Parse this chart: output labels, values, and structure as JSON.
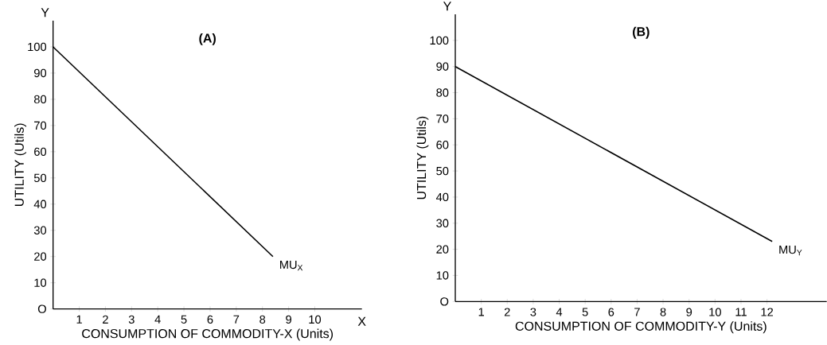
{
  "chart_data": [
    {
      "type": "line",
      "title": "(A)",
      "xlabel": "CONSUMPTION OF COMMODITY-X (Units)",
      "ylabel": "UTILITY (Utils)",
      "annotations": [
        "X",
        "Y"
      ],
      "x": [
        0,
        8.4
      ],
      "series": [
        {
          "name": "MU$_{X}$",
          "color": "#000000",
          "values": [
            100,
            20
          ]
        }
      ],
      "xlim": [
        0,
        11.8
      ],
      "ylim": [
        0,
        110
      ],
      "xticks": [
        1,
        2,
        3,
        4,
        5,
        6,
        7,
        8,
        9,
        10
      ],
      "yticks": [
        {
          "value": 0,
          "label": "O"
        },
        10,
        20,
        30,
        40,
        50,
        60,
        70,
        80,
        90,
        100
      ]
    },
    {
      "type": "line",
      "title": "(B)",
      "xlabel": "CONSUMPTION OF COMMODITY-Y (Units)",
      "ylabel": "UTILITY (Utils)",
      "annotations": [
        "Y"
      ],
      "x": [
        0,
        12.2
      ],
      "series": [
        {
          "name": "MU$_{Y}$",
          "color": "#000000",
          "values": [
            90,
            23
          ]
        }
      ],
      "xlim": [
        0,
        14.3
      ],
      "ylim": [
        0,
        110
      ],
      "xticks": [
        1,
        2,
        3,
        4,
        5,
        6,
        7,
        8,
        9,
        10,
        11,
        12
      ],
      "yticks": [
        {
          "value": 0,
          "label": "O"
        },
        10,
        20,
        30,
        40,
        50,
        60,
        70,
        80,
        90,
        100
      ]
    }
  ]
}
